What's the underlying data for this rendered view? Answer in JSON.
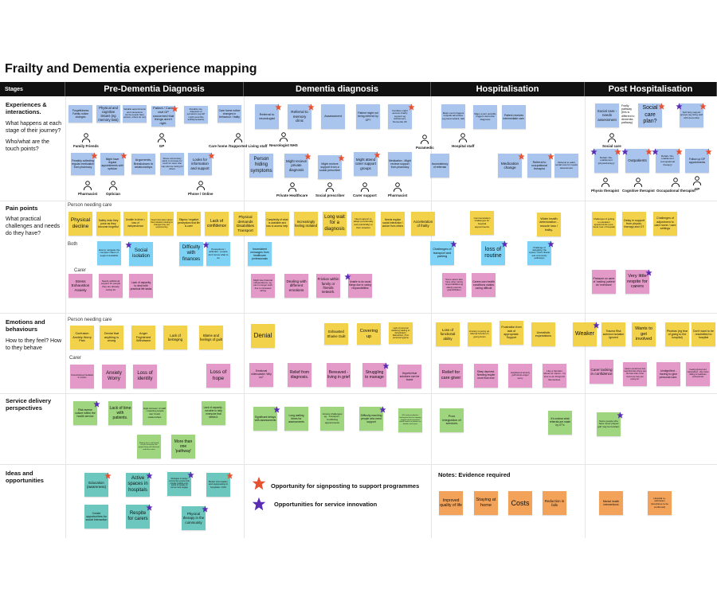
{
  "title": "Frailty and Dementia experience mapping",
  "colors": {
    "blue": "#a9c5ee",
    "yellow": "#f2d24b",
    "sky": "#7dd2f5",
    "pink": "#e39ac8",
    "green": "#9fd57f",
    "teal": "#6cc8bf",
    "orange": "#f3a25a",
    "red_star": "#e8512f",
    "purple_star": "#5a2cb3",
    "header_bg": "#111111"
  },
  "header": {
    "stages": "Stages",
    "columns": [
      "Pre-Dementia Diagnosis",
      "Dementia diagnosis",
      "Hospitalisation",
      "Post Hospitalisation"
    ]
  },
  "rows": [
    {
      "title": "Experiences & interactions.",
      "questions": [
        "What happens at each stage of their journey?",
        "Who/what are the touch points?"
      ]
    },
    {
      "title": "Pain points",
      "questions": [
        "What practical challenges and needs do they have?"
      ]
    },
    {
      "title": "Emotions and behaviours",
      "questions": [
        "How to they feel? How to they behave"
      ]
    },
    {
      "title": "Service delivery perspectives",
      "questions": []
    },
    {
      "title": "Ideas and opportunities",
      "questions": []
    }
  ],
  "sublabels": [
    "Person needing care",
    "Both",
    "Carer",
    "Person needing care",
    "Carer"
  ],
  "frailty_note": "Frailty pathway (this is different to dementia pathway)",
  "touchpoints": [
    "Family Friends",
    "GP",
    "Care home /Supported Living staff",
    "Pharmacist",
    "Optician",
    "Phone / Online",
    "Neurologist NHS",
    "Private Healthcare",
    "Social prescriber",
    "Carer support",
    "Pharmacist",
    "Paramedic",
    "Hospital staff",
    "Social care",
    "Physio therapist",
    "Cognitive therapist",
    "Occupational therapist",
    "GP"
  ],
  "notes": [
    {
      "t": "Forgetfulness Family notice changes",
      "c": "blue"
    },
    {
      "t": "Physical and cognitive issues (eg memory loss)",
      "c": "blue"
    },
    {
      "t": "Variable appointments and interactions (some people have access, others do not)",
      "c": "blue"
    },
    {
      "t": "Patient / Carer visit GP concerned that things aren't right.",
      "c": "blue",
      "s": "red"
    },
    {
      "t": "Possible mis-diagnosis of symptoms (eg GP might prescribe antidepressants)",
      "c": "blue"
    },
    {
      "t": "Care home notice changes in behaviour / frailty",
      "c": "blue"
    },
    {
      "t": "Possibly collecting regular medication from pharmacy",
      "c": "blue",
      "s": "red"
    },
    {
      "t": "Might have regular appointments with optician",
      "c": "blue",
      "s": "red"
    },
    {
      "t": "Arguments, Breakdown in relationships",
      "c": "blue"
    },
    {
      "t": "Stress and anxiety starts to increase for much for carer who may also be caring for others",
      "c": "blue"
    },
    {
      "t": "Looks for information and support",
      "c": "blue",
      "s": "red"
    },
    {
      "t": "Referral to neurologist",
      "c": "blue",
      "s": "red"
    },
    {
      "t": "Referral to memory clinic",
      "c": "blue",
      "s": "red"
    },
    {
      "t": "Assessment",
      "c": "blue"
    },
    {
      "t": "Patient might not being referred by GP?",
      "c": "blue"
    },
    {
      "t": "Families might access charity support eg Alzheimers, Dementia UK",
      "c": "blue",
      "s": "red"
    },
    {
      "t": "Person hiding symptoms",
      "c": "blue"
    },
    {
      "t": "Might recieve private diagnosis",
      "c": "blue",
      "s": "red"
    },
    {
      "t": "Might recieve support from a social prescriber",
      "c": "blue",
      "s": "red"
    },
    {
      "t": "Might attend carer support groups",
      "c": "blue",
      "s": "red"
    },
    {
      "t": "Medication - Might recieve support from pharmacy",
      "c": "blue"
    },
    {
      "t": "Inconsistency of referrals",
      "c": "blue"
    },
    {
      "t": "Major event triggers hospital admission (eg Heart attack, fall)",
      "c": "blue"
    },
    {
      "t": "Major event possibly triggers dementia diagnosis",
      "c": "blue"
    },
    {
      "t": "Patient receives intermediate care.",
      "c": "blue"
    },
    {
      "t": "Medication change",
      "c": "blue",
      "s": "red"
    },
    {
      "t": "Referral to occupational therapist",
      "c": "blue",
      "s": "red"
    },
    {
      "t": "Referral to adult social care for needs assessment",
      "c": "blue"
    },
    {
      "t": "Social care - needs assessment",
      "c": "blue"
    },
    {
      "t": "Social care plan?",
      "c": "blue",
      "s": "red"
    },
    {
      "t": "Self-help support groups (eg living well with dementia)",
      "c": "blue",
      "s": "both"
    },
    {
      "t": "Rehab / Re-enablement (physiotherapy)",
      "c": "blue",
      "s": "both"
    },
    {
      "t": "Outpatients",
      "c": "blue",
      "s": "both"
    },
    {
      "t": "Rehab / Re-enablement (occupational therapy)",
      "c": "blue",
      "s": "both"
    },
    {
      "t": "Follow up GP appointments",
      "c": "blue",
      "s": "red"
    },
    {
      "t": "Physical decline",
      "c": "yellow"
    },
    {
      "t": "Safety risks they pose as they become forgetful",
      "c": "yellow"
    },
    {
      "t": "Unable to drive = loss of independence",
      "c": "yellow"
    },
    {
      "t": "Need information about their situation relating to changes they are experiencing",
      "c": "yellow"
    },
    {
      "t": "Stigma / negative perceptions that life is over!",
      "c": "yellow"
    },
    {
      "t": "Lack of confidence",
      "c": "yellow"
    },
    {
      "t": "Physical demands Disabilities Transport",
      "c": "yellow"
    },
    {
      "t": "Complexity of what is available and how to access help.",
      "c": "yellow"
    },
    {
      "t": "Increasingly feeling isolated",
      "c": "yellow"
    },
    {
      "t": "Long wait for a diagnosis",
      "c": "yellow"
    },
    {
      "t": "Need support to adapt (emotionally and practically) to their situation",
      "c": "yellow"
    },
    {
      "t": "Needs regular social interaction / advice from others",
      "c": "yellow"
    },
    {
      "t": "Acceleration of frailty",
      "c": "yellow"
    },
    {
      "t": "Communication challenges for hospital appointments",
      "c": "yellow"
    },
    {
      "t": "Wider health deterioration - muscle loss / frailty.",
      "c": "yellow"
    },
    {
      "t": "Challenges of getting to outpatient appointments (cost, travel, fear of hospital)",
      "c": "yellow"
    },
    {
      "t": "Delay in support from physio-therapy and OT",
      "c": "yellow"
    },
    {
      "t": "Challenges of adjustment to care home / care settings",
      "c": "yellow"
    },
    {
      "t": "How to navigate the complex chaos of support available",
      "c": "sky"
    },
    {
      "t": "Social isolation",
      "c": "sky",
      "s": "purple-left"
    },
    {
      "t": "Difficulty with finances",
      "c": "sky"
    },
    {
      "t": "Perceptions / attitudes - people don't know what to do",
      "c": "sky",
      "s": "purple-left"
    },
    {
      "t": "Inconsistent messages from healthcare professionals",
      "c": "sky"
    },
    {
      "t": "Challenges of transport and parking",
      "c": "sky",
      "s": "purple"
    },
    {
      "t": "loss of routine",
      "c": "sky",
      "s": "purple"
    },
    {
      "t": "Challenge of navigating 'the system' (both clinical and community pathways)",
      "c": "sky",
      "s": "purple"
    },
    {
      "t": "Stress Exhaustion Anxiety",
      "c": "pink"
    },
    {
      "t": "Needs additional support for people they are already caring for",
      "c": "pink"
    },
    {
      "t": "Lack of capacity to deal with practical life tasks",
      "c": "pink"
    },
    {
      "t": "Might lose financial independence, eg. can no longer work due to increased caring",
      "c": "pink"
    },
    {
      "t": "Dealing with different emotions",
      "c": "pink"
    },
    {
      "t": "Friction within family or friends network.",
      "c": "pink"
    },
    {
      "t": "Unable to do usual things due to caring responsibilities",
      "c": "pink",
      "s": "purple-left"
    },
    {
      "t": "Some carers also have other caring responsibilities eg elderly parents, grandchildren",
      "c": "pink"
    },
    {
      "t": "Carers own health conditions makes caring difficult",
      "c": "pink"
    },
    {
      "t": "Pressure on carer of 'making' patient do 'exercises'",
      "c": "pink"
    },
    {
      "t": "Very little respite for carers",
      "c": "pink",
      "s": "purple"
    },
    {
      "t": "Confusion Anxiety Worry Pain",
      "c": "yellow"
    },
    {
      "t": "Denial that anything is wrong",
      "c": "yellow"
    },
    {
      "t": "Anger Frightened Withdrawn",
      "c": "yellow"
    },
    {
      "t": "Lack of belonging",
      "c": "yellow"
    },
    {
      "t": "Blame and feelings of guilt",
      "c": "yellow"
    },
    {
      "t": "Denial",
      "c": "yellow"
    },
    {
      "t": "Exhausted Shame Guilt",
      "c": "yellow"
    },
    {
      "t": "Covering up",
      "c": "yellow"
    },
    {
      "t": "Lack of personal wellbeing leading to: Dehydration, Malnutrition, Poor personal hygiene",
      "c": "yellow"
    },
    {
      "t": "Loss of functional ability",
      "c": "yellow"
    },
    {
      "t": "Anxiety is going up. Mental function is going down",
      "c": "yellow"
    },
    {
      "t": "Frustration from lack of appropriate. Support",
      "c": "yellow"
    },
    {
      "t": "Unrealistic expectations",
      "c": "yellow"
    },
    {
      "t": "Weaker",
      "c": "yellow",
      "s": "purple"
    },
    {
      "t": "Trauma Risk aversion Isolation Ignored",
      "c": "yellow"
    },
    {
      "t": "Wants to get involved",
      "c": "yellow"
    },
    {
      "t": "Phobias (eg fear of going to the hospital)",
      "c": "yellow"
    },
    {
      "t": "Don't want to be readmitted to hospital",
      "c": "yellow"
    },
    {
      "t": "Overwhelmed Isolated In Limbo",
      "c": "pink"
    },
    {
      "t": "Anxiety Worry",
      "c": "pink"
    },
    {
      "t": "Loss of identity",
      "c": "pink"
    },
    {
      "t": "Loss of hope",
      "c": "pink"
    },
    {
      "t": "Emotional rollercoaster. Why us?",
      "c": "pink"
    },
    {
      "t": "Relief from diagnosis.",
      "c": "pink"
    },
    {
      "t": "Bereaved - living in grief",
      "c": "pink"
    },
    {
      "t": "Struggling to manage",
      "c": "pink",
      "s": "purple"
    },
    {
      "t": "Hopeful that solutions can be found",
      "c": "pink"
    },
    {
      "t": "Relief for care giver",
      "c": "pink"
    },
    {
      "t": "Sleep deprived. Needing respite more than ever",
      "c": "pink"
    },
    {
      "t": "Heightened anxiety guilt stress anger worry",
      "c": "pink"
    },
    {
      "t": "Like a hamster wheel for carers - no time to do things for themselves.",
      "c": "pink"
    },
    {
      "t": "Carer lacking in confidence",
      "c": "pink"
    },
    {
      "t": "Carers sometimes feel resentful that others see the best side of the loved one they are caring for.",
      "c": "pink"
    },
    {
      "t": "Undignified - having to give personal care.",
      "c": "pink"
    },
    {
      "t": "Feeling ignored and marginalised - often when talking to healthcare professionals",
      "c": "pink"
    },
    {
      "t": "Risk averse culture within the health service",
      "c": "green",
      "s": "purple"
    },
    {
      "t": "Lack of time with patients.",
      "c": "green"
    },
    {
      "t": "High turnover of staff - meaning people don't build relationships",
      "c": "green"
    },
    {
      "t": "Lack of capacity - not able to help everyone that needs it.",
      "c": "green"
    },
    {
      "t": "Waiting times and limited access to services for people living with dementia and their carers",
      "c": "green"
    },
    {
      "t": "More than one 'pathway'",
      "c": "green"
    },
    {
      "t": "Significant delays with assessments",
      "c": "green",
      "s": "purple"
    },
    {
      "t": "Long waiting times for assessments",
      "c": "green"
    },
    {
      "t": "Access challenges eg - Transport - Conflicting appointments",
      "c": "green"
    },
    {
      "t": "Difficulty reaching people who need support",
      "c": "green",
      "s": "purple"
    },
    {
      "t": "GPs and practitioners lacking the time for ongoing support and assessment, which leads to a reliance on families and carers",
      "c": "green"
    },
    {
      "t": "Poor integration of services",
      "c": "green"
    },
    {
      "t": "It's unclear what referrals are made by OT's",
      "c": "green"
    },
    {
      "t": "Some people who have never played golf may be hesitant.",
      "c": "green",
      "s": "purple"
    },
    {
      "t": "Education (awareness)",
      "c": "teal",
      "s": "red"
    },
    {
      "t": "Active spaces in hospitals",
      "c": "teal",
      "s": "purple"
    },
    {
      "t": "Strategies to design community services that provide multiple entry points for people to connect and engage",
      "c": "teal",
      "s": "purple"
    },
    {
      "t": "Better information and signposting in hospitals / GPs",
      "c": "teal",
      "s": "red"
    },
    {
      "t": "Create opportunities for social interaction",
      "c": "teal"
    },
    {
      "t": "Respite for carers",
      "c": "teal",
      "s": "purple"
    },
    {
      "t": "Physical therapy in the community",
      "c": "teal",
      "s": "purple"
    },
    {
      "t": "Improved quality of life",
      "c": "orange"
    },
    {
      "t": "Staying at home",
      "c": "orange"
    },
    {
      "t": "Costs",
      "c": "orange"
    },
    {
      "t": "Reduction in falls",
      "c": "orange"
    },
    {
      "t": "Mental health interventions",
      "c": "orange"
    },
    {
      "t": "Hospital re-admission (timeframe to be confirmed)",
      "c": "orange"
    }
  ],
  "legend": [
    {
      "star": "red",
      "label": "Opportunity for signposting to support programmes"
    },
    {
      "star": "purple",
      "label": "Opportunities for service innovation"
    }
  ],
  "evidence_title": "Notes: Evidence required"
}
